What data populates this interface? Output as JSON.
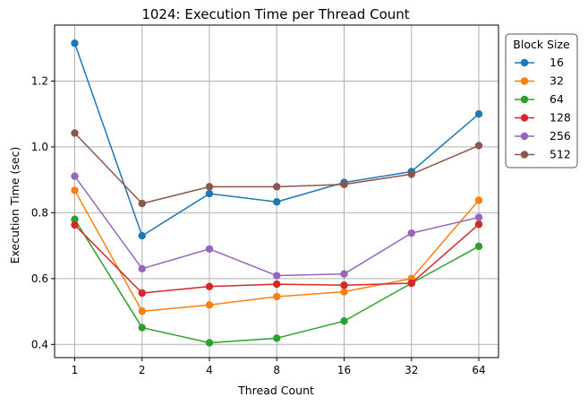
{
  "chart_data": {
    "type": "line",
    "title": "1024: Execution Time per Thread Count",
    "xlabel": "Thread Count",
    "ylabel": "Execution Time (sec)",
    "categories": [
      "1",
      "2",
      "4",
      "8",
      "16",
      "32",
      "64"
    ],
    "ylim": [
      0.36,
      1.37
    ],
    "yticks": [
      0.4,
      0.6,
      0.8,
      1.0,
      1.2
    ],
    "ytick_labels": [
      "0.4",
      "0.6",
      "0.8",
      "1.0",
      "1.2"
    ],
    "grid": true,
    "legend": {
      "title": "Block Size",
      "placement": "outside-top-right"
    },
    "series": [
      {
        "name": "16",
        "color": "#1f77b4",
        "values": [
          1.315,
          0.73,
          0.858,
          0.833,
          0.892,
          0.925,
          1.1
        ]
      },
      {
        "name": "32",
        "color": "#ff7f0e",
        "values": [
          0.868,
          0.501,
          0.52,
          0.545,
          0.56,
          0.6,
          0.838
        ]
      },
      {
        "name": "64",
        "color": "#2ca02c",
        "values": [
          0.78,
          0.451,
          0.405,
          0.419,
          0.471,
          0.586,
          0.698
        ]
      },
      {
        "name": "128",
        "color": "#d62728",
        "values": [
          0.763,
          0.556,
          0.576,
          0.583,
          0.58,
          0.586,
          0.765
        ]
      },
      {
        "name": "256",
        "color": "#9467bd",
        "values": [
          0.911,
          0.63,
          0.69,
          0.609,
          0.614,
          0.738,
          0.786
        ]
      },
      {
        "name": "512",
        "color": "#8c564b",
        "values": [
          1.042,
          0.828,
          0.879,
          0.879,
          0.886,
          0.917,
          1.004
        ]
      }
    ]
  }
}
